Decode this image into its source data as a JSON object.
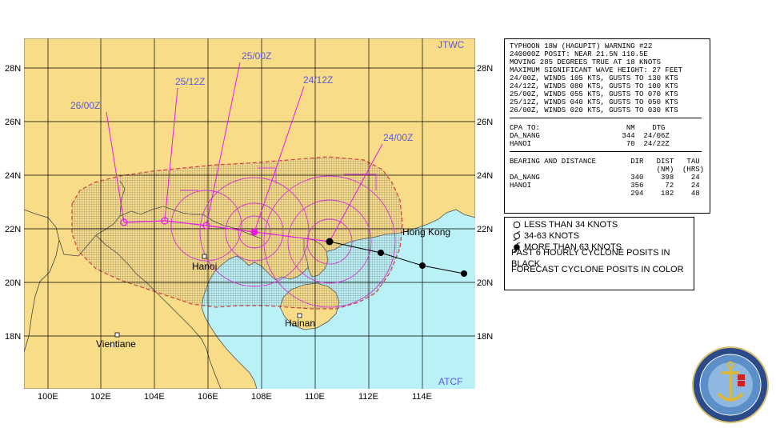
{
  "map": {
    "top_left_tag": "JTWC",
    "bottom_right_tag": "ATCF",
    "lat_labels": [
      "28N",
      "26N",
      "24N",
      "22N",
      "20N",
      "18N"
    ],
    "lon_labels": [
      "100E",
      "102E",
      "104E",
      "106E",
      "108E",
      "110E",
      "112E",
      "114E"
    ],
    "cities": {
      "hanoi": "Hanoi",
      "vientiane": "Vientiane",
      "hong_kong": "Hong Kong",
      "hainan": "Hainan"
    },
    "forecast_tags": {
      "t24_00": "24/00Z",
      "t24_12": "24/12Z",
      "t25_00": "25/00Z",
      "t25_12": "25/12Z",
      "t26_00": "26/00Z"
    },
    "colors": {
      "land": "#f9dc87",
      "water": "#b9f1f6",
      "track": "#e61be6",
      "wind_swath": "#cc4444"
    }
  },
  "warning": {
    "lines": [
      "TYPHOON 18W (HAGUPIT) WARNING #22",
      "240000Z POSIT: NEAR 21.5N 110.5E",
      "MOVING 285 DEGREES TRUE AT 18 KNOTS",
      "MAXIMUM SIGNIFICANT WAVE HEIGHT: 27 FEET",
      "24/00Z, WINDS 105 KTS, GUSTS TO 130 KTS",
      "24/12Z, WINDS 080 KTS, GUSTS TO 100 KTS",
      "25/00Z, WINDS 055 KTS, GUSTS TO 070 KTS",
      "25/12Z, WINDS 040 KTS, GUSTS TO 050 KTS",
      "26/00Z, WINDS 020 KTS, GUSTS TO 030 KTS"
    ],
    "cpa": {
      "header": "CPA TO:                    NM    DTG",
      "rows": [
        "DA_NANG                   344  24/06Z",
        "HANOI                      70  24/22Z"
      ]
    },
    "bearing": {
      "header1": "BEARING AND DISTANCE        DIR   DIST   TAU",
      "header2": "                                  (NM)  (HRS)",
      "rows": [
        "DA_NANG                     340    398    24",
        "HANOI                       356     72    24",
        "                            294    182    48"
      ]
    }
  },
  "legend": {
    "items": [
      "LESS THAN 34 KNOTS",
      "34-63 KNOTS",
      "MORE THAN 63 KNOTS",
      "PAST 6 HOURLY CYCLONE POSITS IN BLACK",
      "FORECAST CYCLONE POSITS IN COLOR"
    ]
  }
}
